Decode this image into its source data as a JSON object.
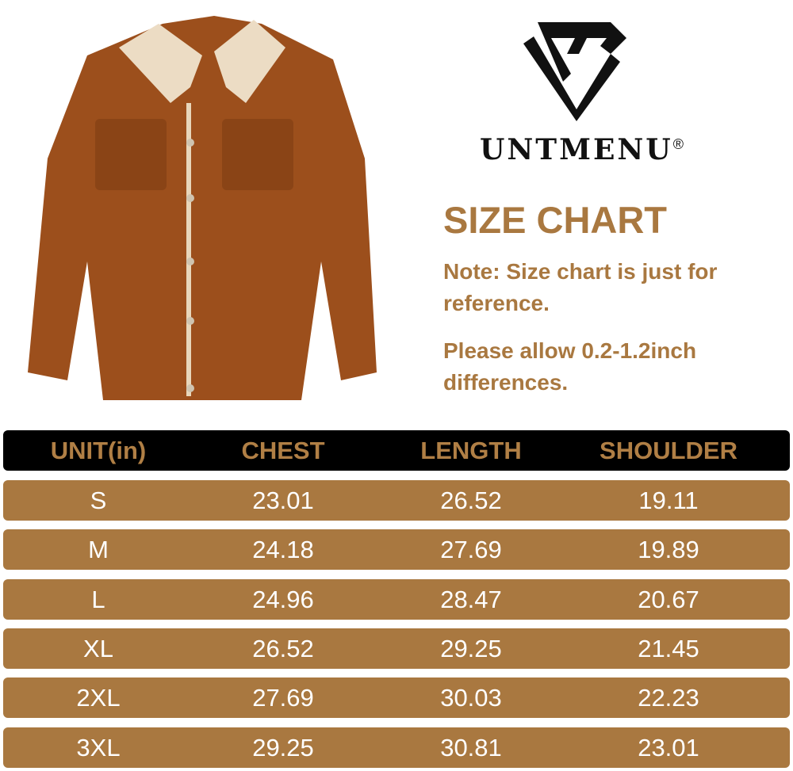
{
  "brand": {
    "name": "UNTMENU",
    "registered": "®"
  },
  "title": "SIZE CHART",
  "notes": [
    "Note: Size chart is just for reference.",
    "Please allow 0.2-1.2inch differences."
  ],
  "colors": {
    "accent": "#a97840",
    "header_bg": "#000000",
    "header_text": "#b07f45",
    "row_text": "#ffffff"
  },
  "table": {
    "headers": [
      "UNIT(in)",
      "CHEST",
      "LENGTH",
      "SHOULDER"
    ],
    "rows": [
      [
        "S",
        "23.01",
        "26.52",
        "19.11"
      ],
      [
        "M",
        "24.18",
        "27.69",
        "19.89"
      ],
      [
        "L",
        "24.96",
        "28.47",
        "20.67"
      ],
      [
        "XL",
        "26.52",
        "29.25",
        "21.45"
      ],
      [
        "2XL",
        "27.69",
        "30.03",
        "22.23"
      ],
      [
        "3XL",
        "29.25",
        "30.81",
        "23.01"
      ]
    ]
  }
}
